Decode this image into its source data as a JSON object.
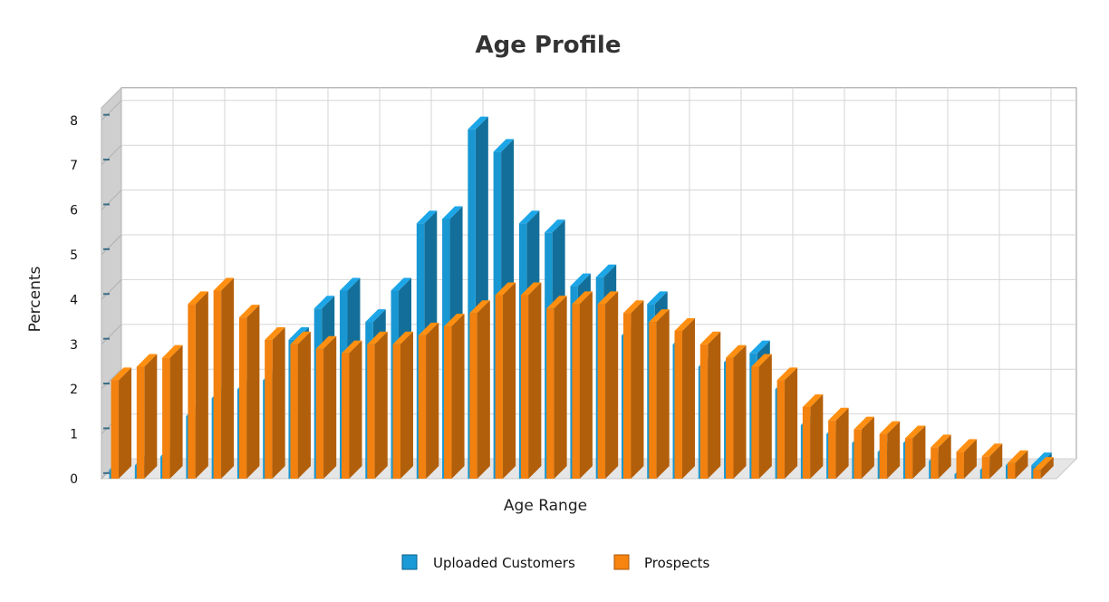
{
  "chart_data": {
    "type": "bar",
    "title": "Age Profile",
    "xlabel": "Age Range",
    "ylabel": "Percents",
    "ylim": [
      0,
      8
    ],
    "yticks": [
      "0",
      "1",
      "2",
      "3",
      "4",
      "5",
      "6",
      "7",
      "8"
    ],
    "grid": true,
    "legend_position": "bottom-center",
    "categories": [
      "",
      "",
      "",
      "",
      "",
      "",
      "",
      "",
      "",
      "",
      "",
      "",
      "",
      "",
      "",
      "",
      "",
      "",
      "",
      "",
      "",
      "",
      "",
      "",
      "",
      "",
      "",
      "",
      "",
      "",
      "",
      "",
      "",
      "",
      "",
      "",
      ""
    ],
    "series": [
      {
        "name": "Uploaded Customers",
        "color": "#1a9ad6",
        "values": [
          0.2,
          0.3,
          0.5,
          1.4,
          1.8,
          2.0,
          2.2,
          3.1,
          3.8,
          4.2,
          3.5,
          4.2,
          5.7,
          5.8,
          7.8,
          7.3,
          5.7,
          5.5,
          4.3,
          4.5,
          3.2,
          3.9,
          3.0,
          2.5,
          2.6,
          2.8,
          2.0,
          1.2,
          1.0,
          0.8,
          0.6,
          0.8,
          0.4,
          0.1,
          0.2,
          0.3,
          0.3
        ]
      },
      {
        "name": "Prospects",
        "color": "#f7840f",
        "values": [
          2.2,
          2.5,
          2.7,
          3.9,
          4.2,
          3.6,
          3.1,
          3.0,
          2.9,
          2.8,
          3.0,
          3.0,
          3.2,
          3.4,
          3.7,
          4.1,
          4.1,
          3.8,
          3.9,
          3.9,
          3.7,
          3.5,
          3.3,
          3.0,
          2.7,
          2.5,
          2.2,
          1.6,
          1.3,
          1.1,
          1.0,
          0.9,
          0.7,
          0.6,
          0.5,
          0.35,
          0.2
        ]
      }
    ]
  },
  "legend": {
    "items": [
      {
        "label": "Uploaded Customers",
        "color": "#1a9ad6"
      },
      {
        "label": "Prospects",
        "color": "#f7840f"
      }
    ]
  }
}
